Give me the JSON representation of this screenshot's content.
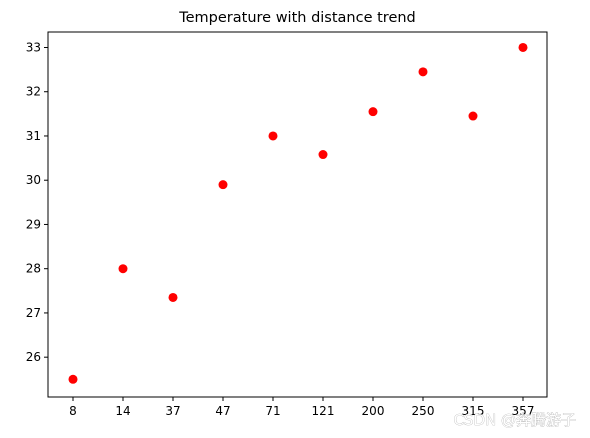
{
  "chart_data": {
    "type": "scatter",
    "title": "Temperature with distance trend",
    "xlabel": "",
    "ylabel": "",
    "categories": [
      "8",
      "14",
      "37",
      "47",
      "71",
      "121",
      "200",
      "250",
      "315",
      "357"
    ],
    "series": [
      {
        "values": [
          25.5,
          28.0,
          27.35,
          29.9,
          31.0,
          30.58,
          31.55,
          32.45,
          31.45,
          33.0
        ],
        "color": "#ff0000"
      }
    ],
    "ylim": [
      25.1,
      33.35
    ],
    "yticks": [
      26,
      27,
      28,
      29,
      30,
      31,
      32,
      33
    ],
    "grid": false,
    "legend": "none"
  },
  "watermark": "CSDN @奔腾游子"
}
